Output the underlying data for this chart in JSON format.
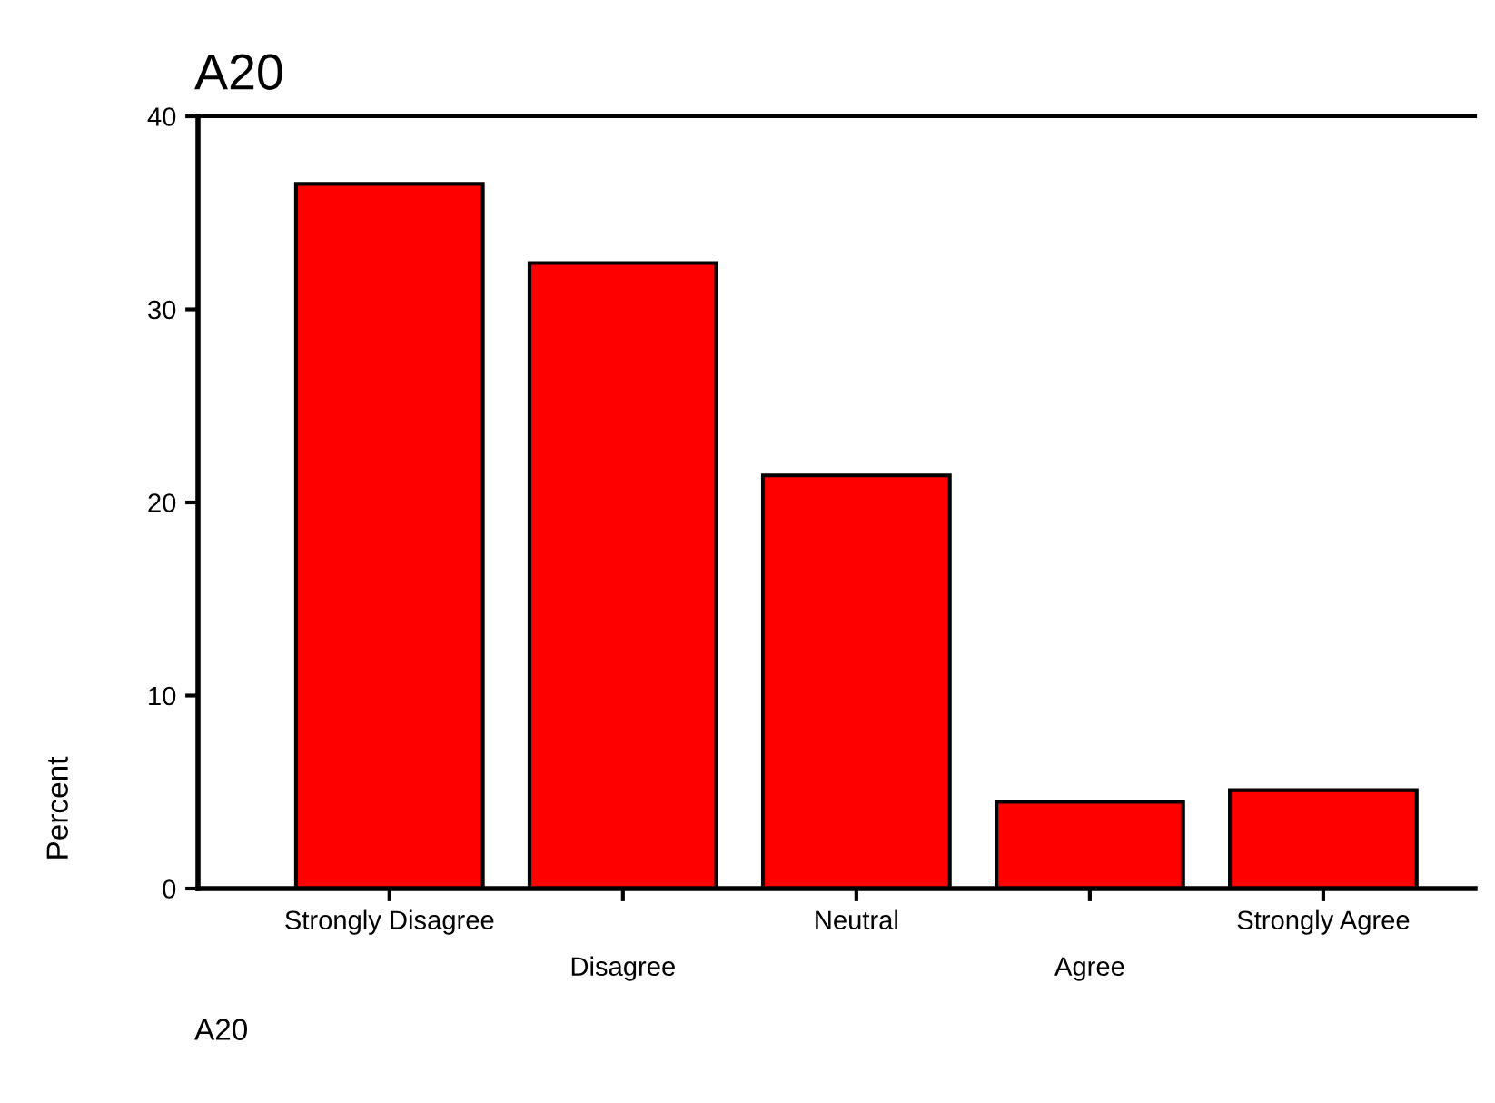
{
  "chart_data": {
    "type": "bar",
    "title": "A20",
    "ylabel": "Percent",
    "categories": [
      "Strongly Disagree",
      "Disagree",
      "Neutral",
      "Agree",
      "Strongly Agree"
    ],
    "values": [
      36.5,
      32.4,
      21.4,
      4.5,
      5.1
    ],
    "color": "#ff0000",
    "ylim": [
      0,
      40
    ],
    "yticks": [
      0,
      10,
      20,
      30,
      40
    ],
    "grid": false,
    "legend": false,
    "annotations": [
      "A20"
    ]
  }
}
